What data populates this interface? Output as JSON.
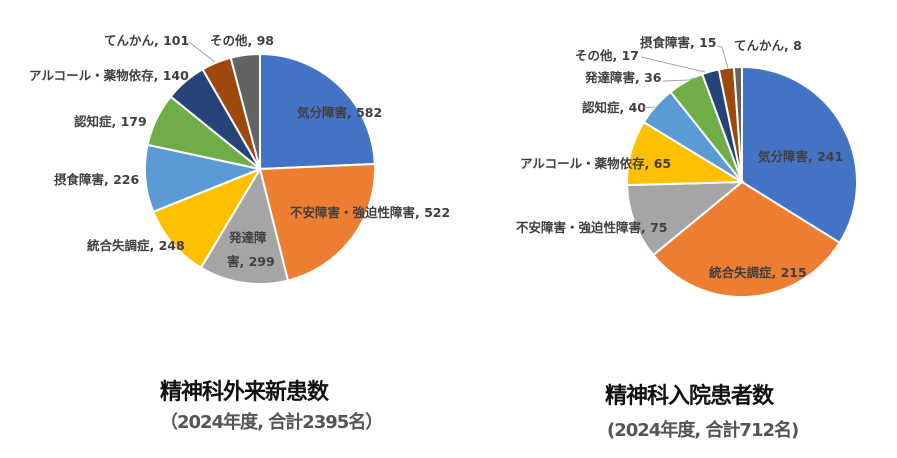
{
  "colors": [
    "#4472C4",
    "#ED7D31",
    "#A5A5A5",
    "#FFC000",
    "#5B9BD5",
    "#70AD47",
    "#264478",
    "#9E480E",
    "#636363"
  ],
  "chart_data": [
    {
      "type": "pie",
      "title": "精神科外来新患数",
      "subtitle": "（2024年度, 合計2395名）",
      "total": 2395,
      "categories": [
        "気分障害",
        "不安障害・強迫性障害",
        "発達障害",
        "統合失調症",
        "摂食障害",
        "認知症",
        "アルコール・薬物依存",
        "てんかん",
        "その他"
      ],
      "values": [
        582,
        522,
        299,
        248,
        226,
        179,
        140,
        101,
        98
      ],
      "labels": [
        "気分障害, 582",
        "不安障害・強迫性障害, 522",
        "発達障害, 299",
        "統合失調症, 248",
        "摂食障害, 226",
        "認知症, 179",
        "アルコール・薬物依存, 140",
        "てんかん, 101",
        "その他, 98"
      ],
      "start_angle_deg": 0,
      "direction": "clockwise"
    },
    {
      "type": "pie",
      "title": "精神科入院患者数",
      "subtitle": "(2024年度, 合計712名)",
      "total": 712,
      "categories": [
        "気分障害",
        "統合失調症",
        "不安障害・強迫性障害",
        "アルコール・薬物依存",
        "認知症",
        "発達障害",
        "その他",
        "摂食障害",
        "てんかん"
      ],
      "values": [
        241,
        215,
        75,
        65,
        40,
        36,
        17,
        15,
        8
      ],
      "labels": [
        "気分障害, 241",
        "統合失調症, 215",
        "不安障害・強迫性障害, 75",
        "アルコール・薬物依存, 65",
        "認知症, 40",
        "発達障害, 36",
        "その他, 17",
        "摂食障害, 15",
        "てんかん, 8"
      ],
      "start_angle_deg": 0,
      "direction": "clockwise"
    }
  ],
  "left": {
    "title": "精神科外来新患数",
    "subtitle": "（2024年度, 合計2395名）",
    "label_hattatsu_1": "発達障",
    "label_hattatsu_2": "害, 299"
  },
  "right": {
    "title": "精神科入院患者数",
    "subtitle": "(2024年度, 合計712名)"
  }
}
